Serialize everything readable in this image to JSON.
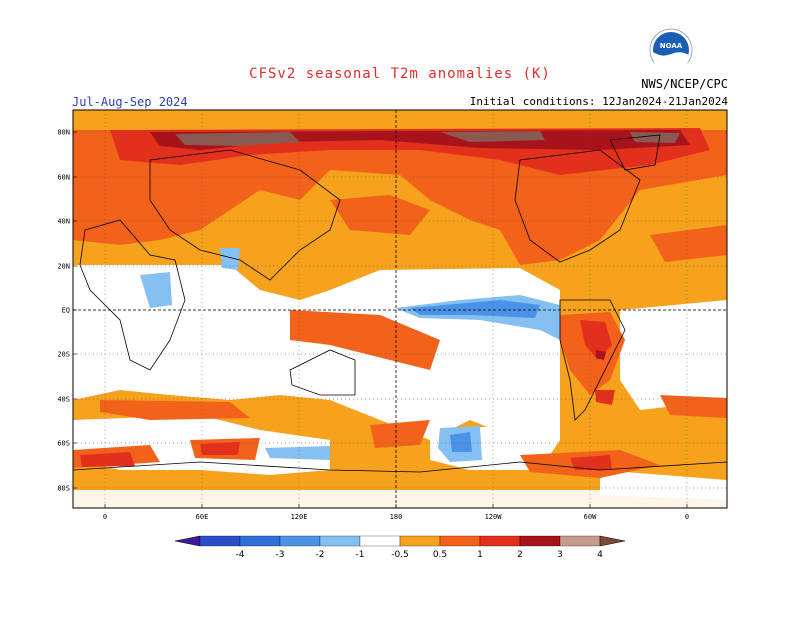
{
  "title": "CFSv2 seasonal T2m anomalies (K)",
  "season": "Jul-Aug-Sep 2024",
  "initial_conditions": "Initial conditions: 12Jan2024-21Jan2024",
  "agency": "NWS/NCEP/CPC",
  "logo_text": "NOAA",
  "lat_ticks": [
    "80N",
    "60N",
    "40N",
    "20N",
    "EQ",
    "20S",
    "40S",
    "60S",
    "80S"
  ],
  "lon_ticks": [
    "0",
    "60E",
    "120E",
    "180",
    "120W",
    "60W",
    "0"
  ],
  "colorbar": {
    "labels": [
      "-4",
      "-3",
      "-2",
      "-1",
      "-0.5",
      "0.5",
      "1",
      "2",
      "3",
      "4"
    ],
    "colors": [
      "#3c1c9c",
      "#2a4fc8",
      "#2f6fd8",
      "#4a93e8",
      "#86c0f2",
      "#ffffff",
      "#f6a21c",
      "#f2621a",
      "#e3301c",
      "#a8121a",
      "#c79a8e",
      "#7a4a3a"
    ]
  },
  "colors": {
    "ocean_warm": "#f6a21c",
    "mod_warm": "#f2621a",
    "strong_warm": "#e3301c",
    "very_strong": "#a8121a",
    "extreme": "#8a5a52",
    "cool": "#86c0f2",
    "mod_cool": "#4a93e8"
  }
}
